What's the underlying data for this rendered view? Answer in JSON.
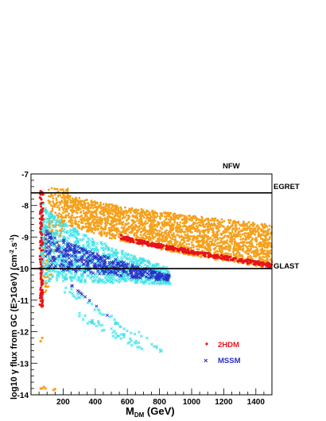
{
  "chart_data": {
    "type": "scatter",
    "title": "NFW",
    "xlabel": {
      "main": "M",
      "sub": "DM",
      "rest": " (GeV)"
    },
    "ylabel": {
      "prefix": "log10 γ flux from GC  (E>1GeV) (cm",
      "exp1": "-2",
      "mid": ".s",
      "exp2": "-1",
      "suffix": ")"
    },
    "xlim": [
      0,
      1500
    ],
    "ylim": [
      -14,
      -7
    ],
    "x_ticks": [
      200,
      400,
      600,
      800,
      1000,
      1200,
      1400
    ],
    "y_ticks": [
      -14,
      -13,
      -12,
      -11,
      -10,
      -9,
      -8,
      -7
    ],
    "grid": false,
    "legend_position": "bottom-middle",
    "reference_lines": [
      {
        "name": "EGRET",
        "y": -7.6,
        "color": "#000000"
      },
      {
        "name": "GLAST",
        "y": -10.0,
        "color": "#000000"
      }
    ],
    "series": [
      {
        "name": "",
        "color": "#f5a11c",
        "marker": "dot",
        "description_band": "upper orange band",
        "band": {
          "x": [
            60,
            1500
          ],
          "upper_end": [
            -7.45,
            -8.6
          ],
          "lower_end": [
            -8.0,
            -10.0
          ],
          "x_start_upper": 150,
          "curv": 0.6
        },
        "extra_points": [
          [
            60,
            -13.8
          ],
          [
            70,
            -13.8
          ],
          [
            80,
            -13.75
          ],
          [
            90,
            -13.8
          ],
          [
            140,
            -13.85
          ],
          [
            150,
            -13.82
          ],
          [
            60,
            -12.3
          ],
          [
            70,
            -12.2
          ]
        ]
      },
      {
        "name": "2HDM",
        "color": "#e8121a",
        "marker": "dot",
        "strip": {
          "x": [
            560,
            1500
          ],
          "y": [
            -9.0,
            -9.9
          ]
        },
        "vertical": {
          "x": [
            55,
            75
          ],
          "y": [
            -7.5,
            -11.2
          ]
        }
      },
      {
        "name": "",
        "color": "#3ee3e8",
        "marker": "cross",
        "region": {
          "x": [
            60,
            870
          ],
          "y_top_left": -7.7,
          "y_bottom_left": -10.4,
          "y_top_right": -10.0,
          "y_bottom_right": -10.5
        },
        "tails": [
          {
            "x": [
              200,
              820
            ],
            "y": [
              -10.6,
              -12.6
            ]
          },
          {
            "x": [
              300,
              700
            ],
            "y": [
              -11.5,
              -12.5
            ]
          }
        ]
      },
      {
        "name": "MSSM",
        "color": "#2a2fc4",
        "marker": "cross",
        "region": {
          "x": [
            90,
            860
          ],
          "y_top_left": -8.7,
          "y_bottom_left": -10.0,
          "y_top_right": -10.2,
          "y_bottom_right": -10.4
        },
        "tails": [
          {
            "x": [
              220,
              480
            ],
            "y": [
              -10.4,
              -11.5
            ]
          }
        ]
      }
    ],
    "legend": [
      {
        "label": "2HDM",
        "color": "#e8121a",
        "marker": "dot"
      },
      {
        "label": "MSSM",
        "color": "#2a2fc4",
        "marker": "cross"
      }
    ]
  }
}
